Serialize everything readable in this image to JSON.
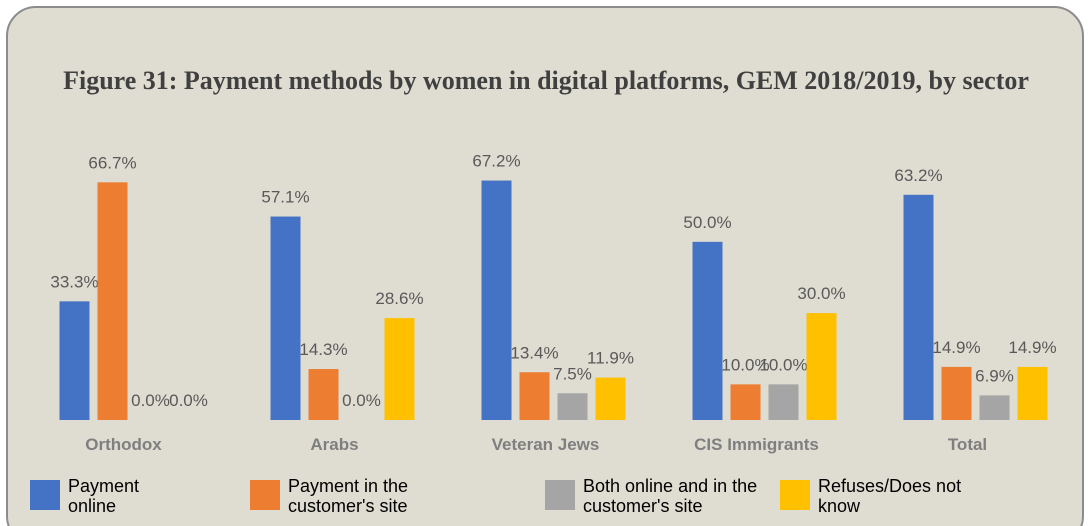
{
  "chart_data": {
    "type": "bar",
    "title": "Figure 31: Payment methods by women in digital platforms, GEM 2018/2019, by sector",
    "categories": [
      "Orthodox",
      "Arabs",
      "Veteran Jews",
      "CIS Immigrants",
      "Total"
    ],
    "series": [
      {
        "name": "Payment online",
        "color": "#4472c4",
        "values": [
          33.3,
          57.1,
          67.2,
          50.0,
          63.2
        ],
        "value_labels": [
          "33.3%",
          "57.1%",
          "67.2%",
          "50.0%",
          "63.2%"
        ]
      },
      {
        "name": "Payment in the customer's site",
        "color": "#ed7d31",
        "values": [
          66.7,
          14.3,
          13.4,
          10.0,
          14.9
        ],
        "value_labels": [
          "66.7%",
          "14.3%",
          "13.4%",
          "10.0%",
          "14.9%"
        ]
      },
      {
        "name": "Both online and in the customer's site",
        "color": "#a5a5a5",
        "values": [
          0.0,
          0.0,
          7.5,
          10.0,
          6.9
        ],
        "value_labels": [
          "0.0%",
          "0.0%",
          "7.5%",
          "10.0%",
          "6.9%"
        ]
      },
      {
        "name": "Refuses/Does not know",
        "color": "#ffc000",
        "values": [
          0.0,
          28.6,
          11.9,
          30.0,
          14.9
        ],
        "value_labels": [
          "0.0%",
          "28.6%",
          "11.9%",
          "30.0%",
          "14.9%"
        ]
      }
    ],
    "ylim": [
      0,
      87
    ],
    "legend": "bottom"
  }
}
